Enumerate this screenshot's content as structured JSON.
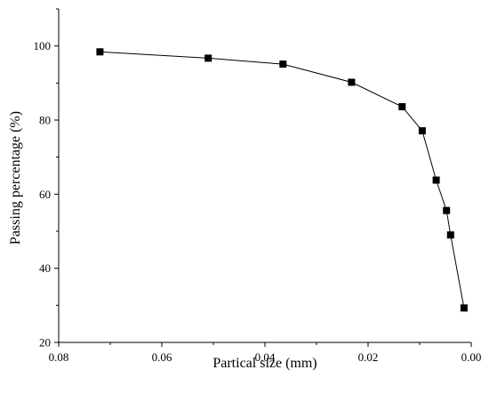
{
  "chart_data": {
    "type": "line",
    "title": "",
    "xlabel": "Partical size (mm)",
    "ylabel": "Passing percentage (%)",
    "x_reversed": true,
    "xlim": [
      0.08,
      0.0
    ],
    "ylim": [
      20,
      110
    ],
    "x_ticks": [
      0.08,
      0.06,
      0.04,
      0.02,
      0.0
    ],
    "x_tick_labels": [
      "0.08",
      "0.06",
      "0.04",
      "0.02",
      "0.00"
    ],
    "y_ticks": [
      20,
      40,
      60,
      80,
      100
    ],
    "y_tick_labels": [
      "20",
      "40",
      "60",
      "80",
      "100"
    ],
    "grid": false,
    "legend": "none",
    "marker": "square",
    "color": "#000000",
    "series": [
      {
        "x": [
          0.072,
          0.051,
          0.0365,
          0.0232,
          0.0134,
          0.0095,
          0.0068,
          0.0048,
          0.004,
          0.0014
        ],
        "y": [
          98.4,
          96.7,
          95.1,
          90.2,
          83.6,
          77.1,
          63.8,
          55.6,
          49.0,
          29.3
        ]
      }
    ]
  }
}
